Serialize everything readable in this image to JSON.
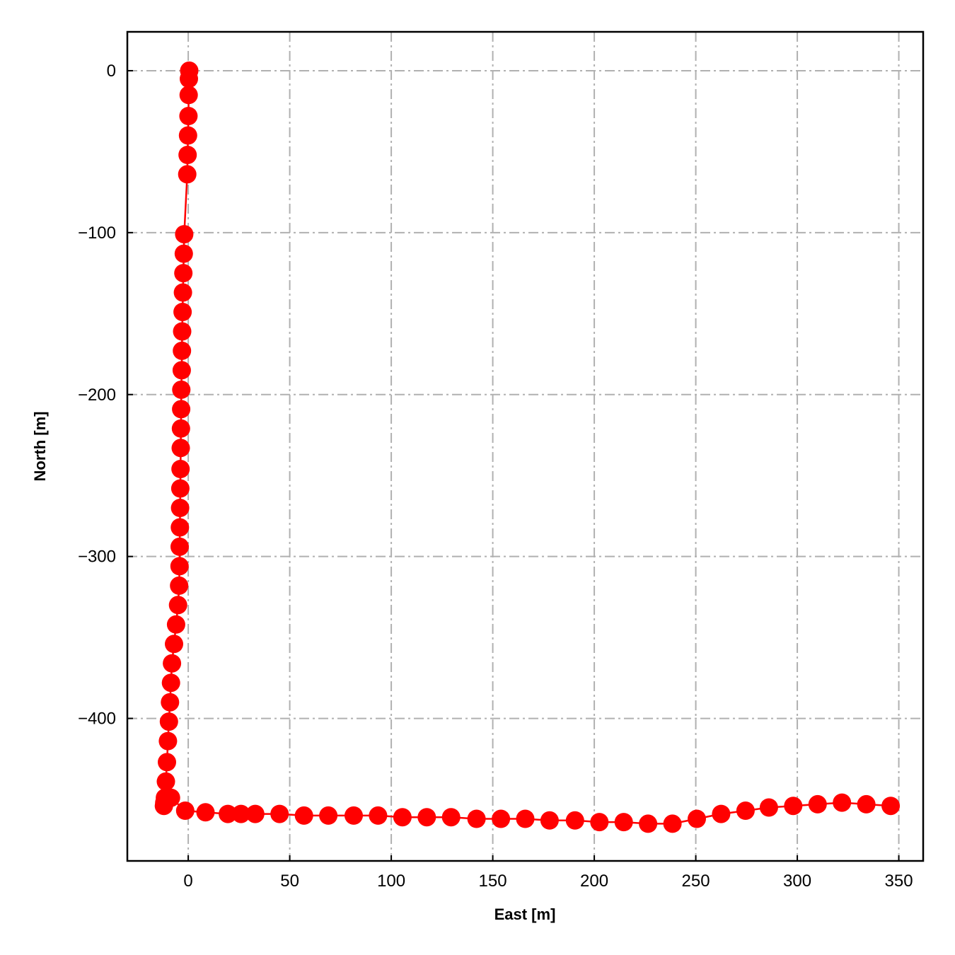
{
  "chart_data": {
    "type": "line",
    "title": "",
    "xlabel": "East [m]",
    "ylabel": "North [m]",
    "xlim": [
      -30,
      362
    ],
    "ylim": [
      -488,
      24
    ],
    "xticks": [
      0,
      50,
      100,
      150,
      200,
      250,
      300,
      350
    ],
    "yticks": [
      0,
      -100,
      -200,
      -300,
      -400
    ],
    "xtick_labels": [
      "0",
      "50",
      "100",
      "150",
      "200",
      "250",
      "300",
      "350"
    ],
    "ytick_labels": [
      "0",
      "−100",
      "−200",
      "−300",
      "−400"
    ],
    "grid": true,
    "legend": "none",
    "series": [
      {
        "color": "#ff0000",
        "marker": "circle",
        "x": [
          0.5,
          0.3,
          0.2,
          0.1,
          -0.1,
          -0.3,
          -0.5,
          -2.0,
          -2.2,
          -2.4,
          -2.6,
          -2.8,
          -3.0,
          -3.1,
          -3.2,
          -3.4,
          -3.5,
          -3.6,
          -3.7,
          -3.8,
          -3.9,
          -4.0,
          -4.1,
          -4.2,
          -4.3,
          -4.5,
          -5.0,
          -6.0,
          -7.0,
          -8.0,
          -8.5,
          -9.0,
          -9.5,
          -10.0,
          -10.5,
          -11.0,
          -11.5,
          -11.8,
          -12.0,
          -8.5,
          -1.5,
          8.5,
          19.5,
          26.0,
          33.0,
          45.0,
          57.0,
          69.0,
          81.5,
          93.5,
          105.5,
          117.5,
          129.5,
          142.0,
          154.0,
          166.0,
          178.0,
          190.5,
          202.5,
          214.5,
          226.5,
          238.5,
          250.5,
          262.5,
          274.5,
          286.0,
          298.0,
          310.0,
          322.0,
          334.0,
          346.0
        ],
        "y": [
          0,
          -5,
          -15,
          -28,
          -40,
          -52,
          -64,
          -101,
          -113,
          -125,
          -137,
          -149,
          -161,
          -173,
          -185,
          -197,
          -209,
          -221,
          -233,
          -246,
          -258,
          -270,
          -282,
          -294,
          -306,
          -318,
          -330,
          -342,
          -354,
          -366,
          -378,
          -390,
          -402,
          -414,
          -427,
          -439,
          -449,
          -452,
          -454,
          -449,
          -457,
          -458,
          -459,
          -459,
          -459,
          -459,
          -460,
          -460,
          -460,
          -460,
          -461,
          -461,
          -461,
          -462,
          -462,
          -462,
          -463,
          -463,
          -464,
          -464,
          -465,
          -465,
          -462,
          -459,
          -457,
          -455,
          -454,
          -453,
          -452,
          -453,
          -454
        ]
      }
    ]
  }
}
